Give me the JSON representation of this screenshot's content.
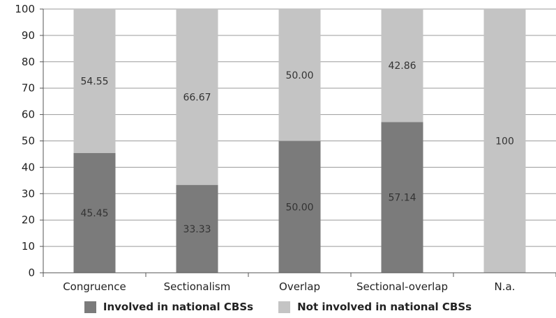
{
  "colors": {
    "involved": "#7b7b7b",
    "not_involved": "#c4c4c4",
    "grid": "#9a9a9a"
  },
  "chart_data": {
    "type": "bar",
    "stacked": true,
    "categories": [
      "Congruence",
      "Sectionalism",
      "Overlap",
      "Sectional-overlap",
      "N.a."
    ],
    "series": [
      {
        "name": "Involved in national CBSs",
        "values": [
          45.45,
          33.33,
          50.0,
          57.14,
          0
        ],
        "labels": [
          "45.45",
          "33.33",
          "50.00",
          "57.14",
          ""
        ]
      },
      {
        "name": "Not involved in national CBSs",
        "values": [
          54.55,
          66.67,
          50.0,
          42.86,
          100
        ],
        "labels": [
          "54.55",
          "66.67",
          "50.00",
          "42.86",
          "100"
        ]
      }
    ],
    "ylim": [
      0,
      100
    ],
    "yticks": [
      "0",
      "10",
      "20",
      "30",
      "40",
      "50",
      "60",
      "70",
      "80",
      "90",
      "100"
    ],
    "grid": true,
    "legend_position": "bottom",
    "title": "",
    "xlabel": "",
    "ylabel": ""
  }
}
